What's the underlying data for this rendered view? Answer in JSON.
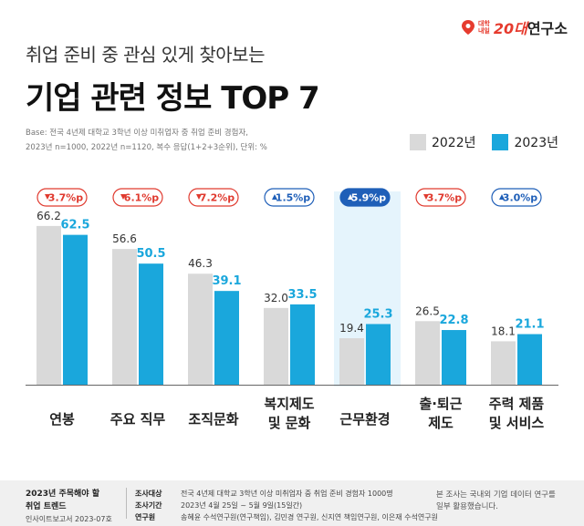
{
  "brand": {
    "name_small_1": "대학",
    "name_small_2": "내일",
    "name_accent": "20대",
    "name_rest": "연구소"
  },
  "header": {
    "subtitle": "취업 준비 중 관심 있게 찾아보는",
    "title": "기업 관련 정보 TOP 7",
    "base_line1": "Base: 전국 4년제 대학교 3학년 이상 미취업자 중 취업 준비 경험자,",
    "base_line2": "2023년 n=1000, 2022년 n=1120, 복수 응답(1+2+3순위), 단위: %"
  },
  "colors": {
    "y2022": "#d9d9d9",
    "y2023": "#1aa7dc",
    "down": "#e03a2f",
    "up": "#1f5fb8",
    "highlight": "#e5f4fc"
  },
  "chart_data": {
    "type": "bar",
    "categories": [
      [
        "연봉"
      ],
      [
        "주요 직무"
      ],
      [
        "조직문화"
      ],
      [
        "복지제도",
        "및 문화"
      ],
      [
        "근무환경"
      ],
      [
        "출·퇴근",
        "제도"
      ],
      [
        "주력 제품",
        "및 서비스"
      ]
    ],
    "series": [
      {
        "name": "2022년",
        "values": [
          66.2,
          56.6,
          46.3,
          32.0,
          19.4,
          26.5,
          18.1
        ]
      },
      {
        "name": "2023년",
        "values": [
          62.5,
          50.5,
          39.1,
          33.5,
          25.3,
          22.8,
          21.1
        ]
      }
    ],
    "changes": [
      {
        "dir": "down",
        "text": "3.7%p"
      },
      {
        "dir": "down",
        "text": "6.1%p"
      },
      {
        "dir": "down",
        "text": "7.2%p"
      },
      {
        "dir": "up",
        "text": "1.5%p"
      },
      {
        "dir": "up",
        "text": "5.9%p"
      },
      {
        "dir": "down",
        "text": "3.7%p"
      },
      {
        "dir": "up",
        "text": "3.0%p"
      }
    ],
    "highlight_index": 4,
    "legend_position": "top-right"
  },
  "footer": {
    "left_line1": "2023년 주목해야 할",
    "left_line2": "취업 트렌드",
    "left_line3": "인사이트보고서 2023-07호",
    "labels": [
      "조사대상",
      "조사기간",
      "연구원"
    ],
    "values": [
      "전국 4년제 대학교 3학년 이상 미취업자 중 취업 준비 경험자 1000명",
      "2023년 4월 25일 ~ 5월 9일(15일간)",
      "송혜윤 수석연구원(연구책임), 김민경 연구원, 신지연 책임연구원, 이은재 수석연구원"
    ],
    "right_line1": "본 조사는 국내외 기업 데이터 연구를",
    "right_line2": "일부 활용했습니다."
  }
}
